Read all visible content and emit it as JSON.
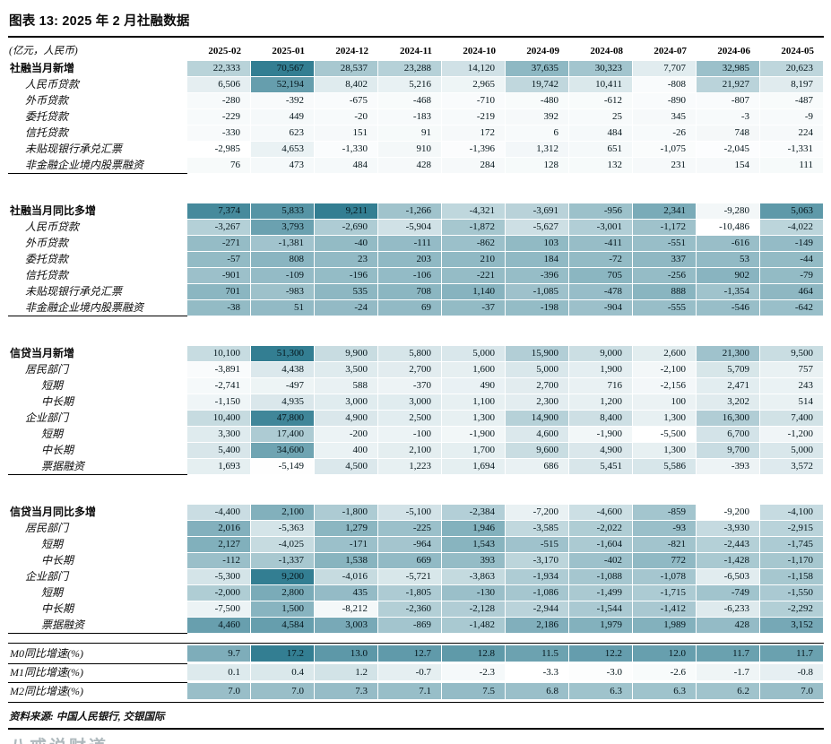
{
  "title": "图表 13: 2025 年 2 月社融数据",
  "unit_note": "(亿元，人民币)",
  "heat_colors": {
    "low": "#ffffff",
    "high": "#337e92"
  },
  "chart_data": {
    "type": "table",
    "columns": [
      "2025-02",
      "2025-01",
      "2024-12",
      "2024-11",
      "2024-10",
      "2024-09",
      "2024-08",
      "2024-07",
      "2024-06",
      "2024-05"
    ],
    "sections": [
      {
        "name": "社融当月新增",
        "decimals": false,
        "rows": [
          {
            "label": "社融当月新增",
            "bold": true,
            "indent": 0,
            "values": [
              22333,
              70567,
              28537,
              23288,
              14120,
              37635,
              30323,
              7707,
              32985,
              20623
            ]
          },
          {
            "label": "人民币贷款",
            "bold": false,
            "indent": 1,
            "values": [
              6506,
              52194,
              8402,
              5216,
              2965,
              19742,
              10411,
              -808,
              21927,
              8197
            ]
          },
          {
            "label": "外币贷款",
            "bold": false,
            "indent": 1,
            "values": [
              -280,
              -392,
              -675,
              -468,
              -710,
              -480,
              -612,
              -890,
              -807,
              -487
            ]
          },
          {
            "label": "委托贷款",
            "bold": false,
            "indent": 1,
            "values": [
              -229,
              449,
              -20,
              -183,
              -219,
              392,
              25,
              345,
              -3,
              -9
            ]
          },
          {
            "label": "信托贷款",
            "bold": false,
            "indent": 1,
            "values": [
              -330,
              623,
              151,
              91,
              172,
              6,
              484,
              -26,
              748,
              224
            ]
          },
          {
            "label": "未贴现银行承兑汇票",
            "bold": false,
            "indent": 1,
            "values": [
              -2985,
              4653,
              -1330,
              910,
              -1396,
              1312,
              651,
              -1075,
              -2045,
              -1331
            ]
          },
          {
            "label": "非金融企业境内股票融资",
            "bold": false,
            "indent": 1,
            "values": [
              76,
              473,
              484,
              428,
              284,
              128,
              132,
              231,
              154,
              111
            ]
          }
        ]
      },
      {
        "name": "社融当月同比多增",
        "decimals": false,
        "rows": [
          {
            "label": "社融当月同比多增",
            "bold": true,
            "indent": 0,
            "values": [
              7374,
              5833,
              9211,
              -1266,
              -4321,
              -3691,
              -956,
              2341,
              -9280,
              5063
            ]
          },
          {
            "label": "人民币贷款",
            "bold": false,
            "indent": 1,
            "values": [
              -3267,
              3793,
              -2690,
              -5904,
              -1872,
              -5627,
              -3001,
              -1172,
              -10486,
              -4022
            ]
          },
          {
            "label": "外币贷款",
            "bold": false,
            "indent": 1,
            "values": [
              -271,
              -1381,
              -40,
              -111,
              -862,
              103,
              -411,
              -551,
              -616,
              -149
            ]
          },
          {
            "label": "委托贷款",
            "bold": false,
            "indent": 1,
            "values": [
              -57,
              808,
              23,
              203,
              210,
              184,
              -72,
              337,
              53,
              -44
            ]
          },
          {
            "label": "信托贷款",
            "bold": false,
            "indent": 1,
            "values": [
              -901,
              -109,
              -196,
              -106,
              -221,
              -396,
              705,
              -256,
              902,
              -79
            ]
          },
          {
            "label": "未贴现银行承兑汇票",
            "bold": false,
            "indent": 1,
            "values": [
              701,
              -983,
              535,
              708,
              1140,
              -1085,
              -478,
              888,
              -1354,
              464
            ]
          },
          {
            "label": "非金融企业境内股票融资",
            "bold": false,
            "indent": 1,
            "values": [
              -38,
              51,
              -24,
              69,
              -37,
              -198,
              -904,
              -555,
              -546,
              -642
            ]
          }
        ]
      },
      {
        "name": "信贷当月新增",
        "decimals": false,
        "rows": [
          {
            "label": "信贷当月新增",
            "bold": true,
            "indent": 0,
            "values": [
              10100,
              51300,
              9900,
              5800,
              5000,
              15900,
              9000,
              2600,
              21300,
              9500
            ]
          },
          {
            "label": "居民部门",
            "bold": false,
            "indent": 1,
            "values": [
              -3891,
              4438,
              3500,
              2700,
              1600,
              5000,
              1900,
              -2100,
              5709,
              757
            ]
          },
          {
            "label": "短期",
            "bold": false,
            "indent": 2,
            "values": [
              -2741,
              -497,
              588,
              -370,
              490,
              2700,
              716,
              -2156,
              2471,
              243
            ]
          },
          {
            "label": "中长期",
            "bold": false,
            "indent": 2,
            "values": [
              -1150,
              4935,
              3000,
              3000,
              1100,
              2300,
              1200,
              100,
              3202,
              514
            ]
          },
          {
            "label": "企业部门",
            "bold": false,
            "indent": 1,
            "values": [
              10400,
              47800,
              4900,
              2500,
              1300,
              14900,
              8400,
              1300,
              16300,
              7400
            ]
          },
          {
            "label": "短期",
            "bold": false,
            "indent": 2,
            "values": [
              3300,
              17400,
              -200,
              -100,
              -1900,
              4600,
              -1900,
              -5500,
              6700,
              -1200
            ]
          },
          {
            "label": "中长期",
            "bold": false,
            "indent": 2,
            "values": [
              5400,
              34600,
              400,
              2100,
              1700,
              9600,
              4900,
              1300,
              9700,
              5000
            ]
          },
          {
            "label": "票据融资",
            "bold": false,
            "indent": 2,
            "values": [
              1693,
              -5149,
              4500,
              1223,
              1694,
              686,
              5451,
              5586,
              -393,
              3572
            ]
          }
        ]
      },
      {
        "name": "信贷当月同比多增",
        "decimals": false,
        "rows": [
          {
            "label": "信贷当月同比多增",
            "bold": true,
            "indent": 0,
            "values": [
              -4400,
              2100,
              -1800,
              -5100,
              -2384,
              -7200,
              -4600,
              -859,
              -9200,
              -4100
            ]
          },
          {
            "label": "居民部门",
            "bold": false,
            "indent": 1,
            "values": [
              2016,
              -5363,
              1279,
              -225,
              1946,
              -3585,
              -2022,
              -93,
              -3930,
              -2915
            ]
          },
          {
            "label": "短期",
            "bold": false,
            "indent": 2,
            "values": [
              2127,
              -4025,
              -171,
              -964,
              1543,
              -515,
              -1604,
              -821,
              -2443,
              -1745
            ]
          },
          {
            "label": "中长期",
            "bold": false,
            "indent": 2,
            "values": [
              -112,
              -1337,
              1538,
              669,
              393,
              -3170,
              -402,
              772,
              -1428,
              -1170
            ]
          },
          {
            "label": "企业部门",
            "bold": false,
            "indent": 1,
            "values": [
              -5300,
              9200,
              -4016,
              -5721,
              -3863,
              -1934,
              -1088,
              -1078,
              -6503,
              -1158
            ]
          },
          {
            "label": "短期",
            "bold": false,
            "indent": 2,
            "values": [
              -2000,
              2800,
              435,
              -1805,
              -130,
              -1086,
              -1499,
              -1715,
              -749,
              -1550
            ]
          },
          {
            "label": "中长期",
            "bold": false,
            "indent": 2,
            "values": [
              -7500,
              1500,
              -8212,
              -2360,
              -2128,
              -2944,
              -1544,
              -1412,
              -6233,
              -2292
            ]
          },
          {
            "label": "票据融资",
            "bold": false,
            "indent": 2,
            "values": [
              4460,
              4584,
              3003,
              -869,
              -1482,
              2186,
              1979,
              1989,
              428,
              3152
            ]
          }
        ]
      },
      {
        "name": "货币增速",
        "decimals": true,
        "style": "m",
        "rows": [
          {
            "label": "M0同比增速(%)",
            "bold": false,
            "indent": 0,
            "values": [
              9.7,
              17.2,
              13.0,
              12.7,
              12.8,
              11.5,
              12.2,
              12.0,
              11.7,
              11.7
            ]
          },
          {
            "label": "M1同比增速(%)",
            "bold": false,
            "indent": 0,
            "values": [
              0.1,
              0.4,
              1.2,
              -0.7,
              -2.3,
              -3.3,
              -3.0,
              -2.6,
              -1.7,
              -0.8
            ]
          },
          {
            "label": "M2同比增速(%)",
            "bold": false,
            "indent": 0,
            "values": [
              7.0,
              7.0,
              7.3,
              7.1,
              7.5,
              6.8,
              6.3,
              6.3,
              6.2,
              7.0
            ]
          }
        ]
      }
    ]
  },
  "footer": {
    "source": "资料来源: 中国人民银行, 交银国际",
    "watermark": "八戒说财道"
  }
}
